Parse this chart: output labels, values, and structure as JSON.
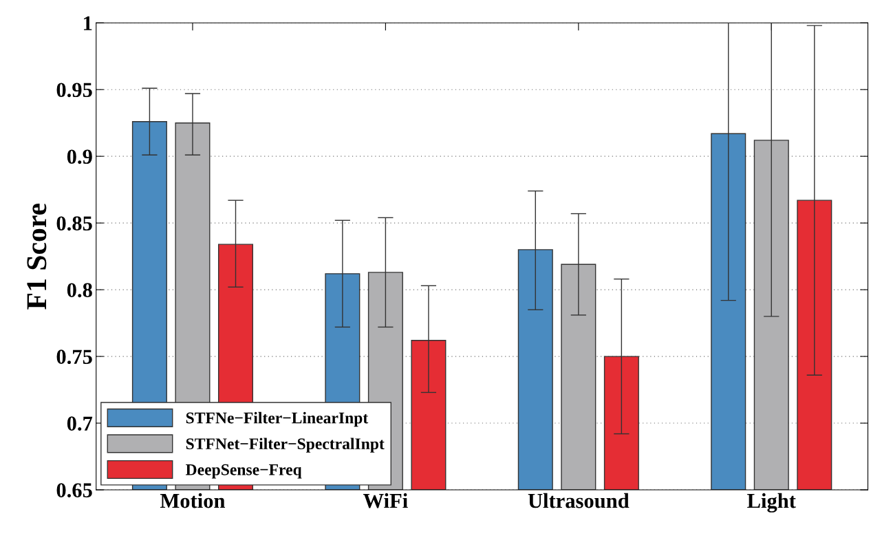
{
  "chart_data": {
    "type": "bar",
    "ylabel": "F1 Score",
    "categories": [
      "Motion",
      "WiFi",
      "Ultrasound",
      "Light"
    ],
    "series": [
      {
        "name": "STFNe−Filter−LinearInpt",
        "color": "#4a8bc0",
        "values": [
          0.926,
          0.812,
          0.83,
          0.917
        ],
        "errors": [
          [
            0.901,
            0.951
          ],
          [
            0.772,
            0.852
          ],
          [
            0.785,
            0.874
          ],
          [
            0.792,
            1.0
          ]
        ]
      },
      {
        "name": "STFNet−Filter−SpectralInpt",
        "color": "#b0b0b2",
        "values": [
          0.925,
          0.813,
          0.819,
          0.912
        ],
        "errors": [
          [
            0.901,
            0.947
          ],
          [
            0.772,
            0.854
          ],
          [
            0.781,
            0.857
          ],
          [
            0.78,
            1.0
          ]
        ]
      },
      {
        "name": "DeepSense−Freq",
        "color": "#e52d34",
        "values": [
          0.834,
          0.762,
          0.75,
          0.867
        ],
        "errors": [
          [
            0.802,
            0.867
          ],
          [
            0.723,
            0.803
          ],
          [
            0.692,
            0.808
          ],
          [
            0.736,
            0.998
          ]
        ]
      }
    ],
    "ylim": [
      0.65,
      1
    ],
    "yticks": [
      0.65,
      0.7,
      0.75,
      0.8,
      0.85,
      0.9,
      0.95,
      1
    ],
    "grid": "y",
    "legend": "bottom left"
  }
}
